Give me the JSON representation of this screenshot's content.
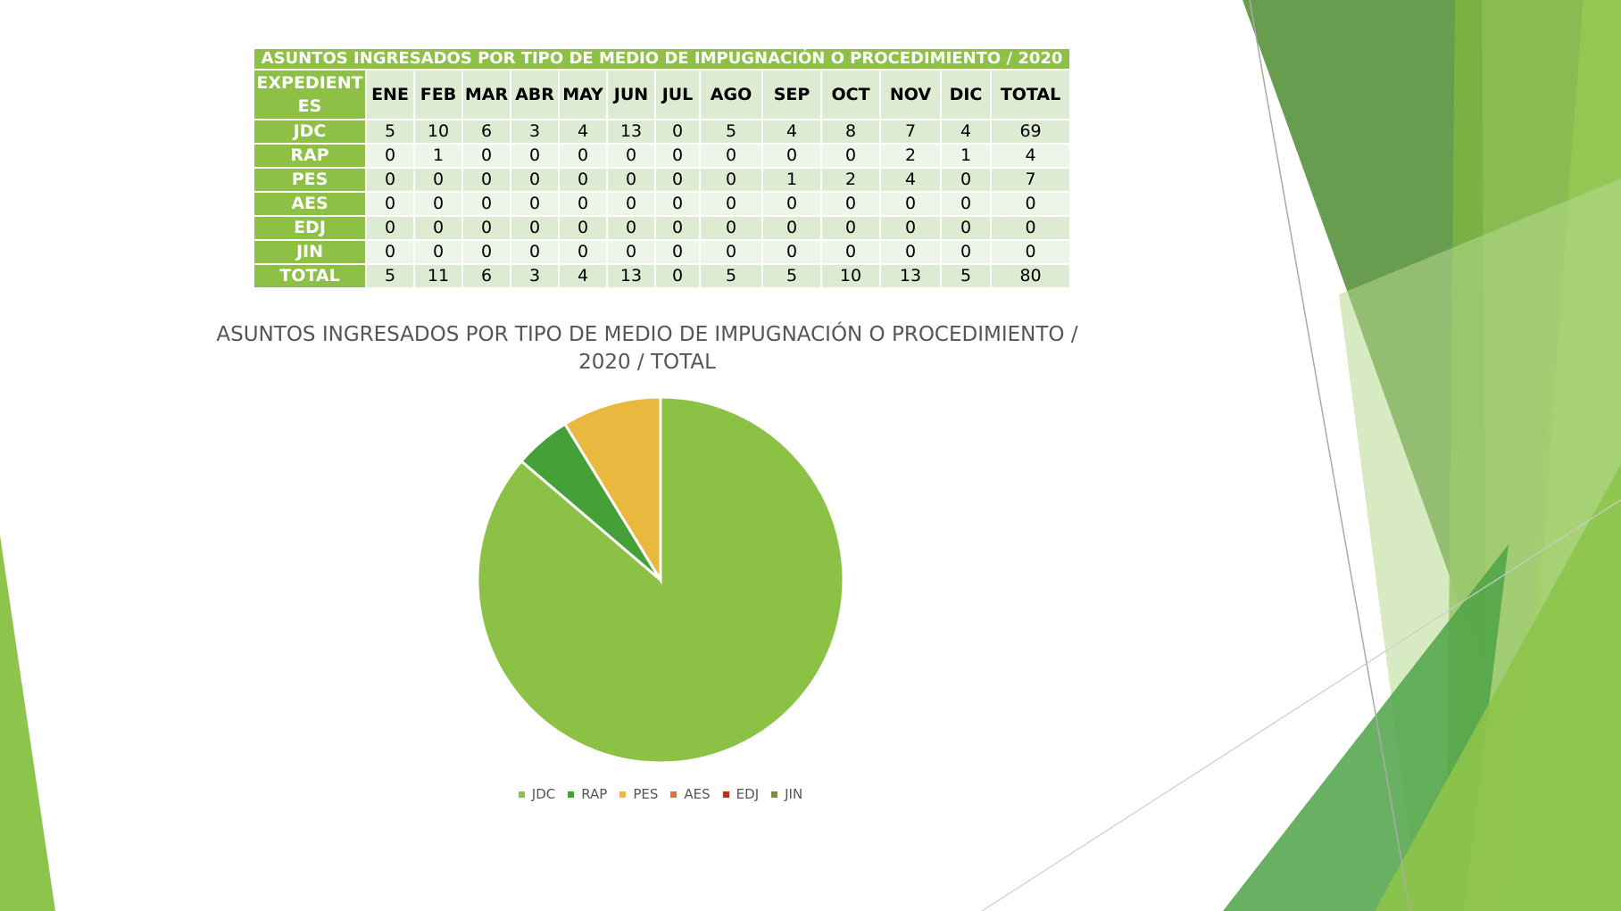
{
  "table": {
    "title": "ASUNTOS INGRESADOS POR TIPO DE MEDIO DE IMPUGNACIÓN O PROCEDIMIENTO / 2020",
    "row_header_line1": "EXPEDIENT",
    "row_header_line2": "ES",
    "months": [
      "ENE",
      "FEB",
      "MAR",
      "ABR",
      "MAY",
      "JUN",
      "JUL",
      "AGO",
      "SEP",
      "OCT",
      "NOV",
      "DIC",
      "TOTAL"
    ],
    "rows": [
      {
        "label": "JDC",
        "values": [
          "5",
          "10",
          "6",
          "3",
          "4",
          "13",
          "0",
          "5",
          "4",
          "8",
          "7",
          "4",
          "69"
        ]
      },
      {
        "label": "RAP",
        "values": [
          "0",
          "1",
          "0",
          "0",
          "0",
          "0",
          "0",
          "0",
          "0",
          "0",
          "2",
          "1",
          "4"
        ]
      },
      {
        "label": "PES",
        "values": [
          "0",
          "0",
          "0",
          "0",
          "0",
          "0",
          "0",
          "0",
          "1",
          "2",
          "4",
          "0",
          "7"
        ]
      },
      {
        "label": "AES",
        "values": [
          "0",
          "0",
          "0",
          "0",
          "0",
          "0",
          "0",
          "0",
          "0",
          "0",
          "0",
          "0",
          "0"
        ]
      },
      {
        "label": "EDJ",
        "values": [
          "0",
          "0",
          "0",
          "0",
          "0",
          "0",
          "0",
          "0",
          "0",
          "0",
          "0",
          "0",
          "0"
        ]
      },
      {
        "label": "JIN",
        "values": [
          "0",
          "0",
          "0",
          "0",
          "0",
          "0",
          "0",
          "0",
          "0",
          "0",
          "0",
          "0",
          "0"
        ]
      },
      {
        "label": "TOTAL",
        "values": [
          "5",
          "11",
          "6",
          "3",
          "4",
          "13",
          "0",
          "5",
          "5",
          "10",
          "13",
          "5",
          "80"
        ]
      }
    ]
  },
  "chart_data": {
    "type": "pie",
    "title": "ASUNTOS INGRESADOS POR TIPO DE MEDIO DE IMPUGNACIÓN O PROCEDIMIENTO / 2020 / TOTAL",
    "title_line1": "ASUNTOS INGRESADOS POR TIPO DE MEDIO DE IMPUGNACIÓN O PROCEDIMIENTO /",
    "title_line2": "2020 / TOTAL",
    "labels": [
      "JDC",
      "RAP",
      "PES",
      "AES",
      "EDJ",
      "JIN"
    ],
    "values": [
      69,
      4,
      7,
      0,
      0,
      0
    ],
    "colors": [
      "#8bc145",
      "#44a037",
      "#e9b83e",
      "#e0733b",
      "#c9271e",
      "#878a3e"
    ],
    "legend_position": "bottom"
  },
  "colors": {
    "accent_green": "#8dc044",
    "row_shade": "#deebd3",
    "row_light": "#eef5e8"
  }
}
